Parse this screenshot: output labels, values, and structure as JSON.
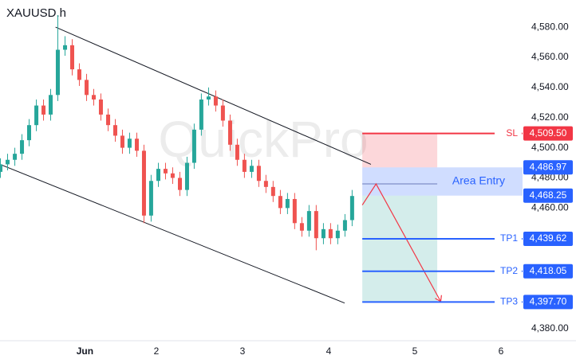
{
  "chart_data": {
    "type": "candlestick",
    "title": "XAUUSD.h",
    "watermark": "QuickPro",
    "up_color": "#26a69a",
    "down_color": "#ef5350",
    "xlim": [
      0.185,
      6.25
    ],
    "ylim": [
      4372,
      4598
    ],
    "xticks": [
      {
        "value": 1.17,
        "label": "Jun"
      },
      2,
      3,
      4,
      5,
      6
    ],
    "yticks": [
      {
        "value": 4380,
        "label": "4,380.00"
      },
      {
        "value": 4460,
        "label": "4,460.00"
      },
      {
        "value": 4480,
        "label": "4,480.00"
      },
      {
        "value": 4500,
        "label": "4,500.00"
      },
      {
        "value": 4520,
        "label": "4,520.00"
      },
      {
        "value": 4540,
        "label": "4,540.00"
      },
      {
        "value": 4560,
        "label": "4,560.00"
      },
      {
        "value": 4580,
        "label": "4,580.00"
      }
    ],
    "x": [
      0.19,
      0.273,
      0.357,
      0.44,
      0.523,
      0.607,
      0.69,
      0.773,
      0.856,
      0.94,
      1.023,
      1.106,
      1.19,
      1.273,
      1.356,
      1.44,
      1.523,
      1.606,
      1.689,
      1.773,
      1.856,
      1.939,
      2.023,
      2.106,
      2.189,
      2.273,
      2.356,
      2.439,
      2.522,
      2.606,
      2.689,
      2.772,
      2.856,
      2.939,
      3.022,
      3.106,
      3.189,
      3.272,
      3.355,
      3.439,
      3.522,
      3.605,
      3.689,
      3.772,
      3.855,
      3.939,
      4.022,
      4.105,
      4.189,
      4.272
    ],
    "open": [
      4484,
      4489,
      4492,
      4496,
      4505,
      4515,
      4528,
      4522,
      4535,
      4565,
      4568,
      4552,
      4545,
      4535,
      4532,
      4522,
      4515,
      4508,
      4500,
      4506,
      4498,
      4455,
      4478,
      4486,
      4483,
      4480,
      4472,
      4490,
      4512,
      4532,
      4534,
      4528,
      4518,
      4502,
      4492,
      4484,
      4488,
      4478,
      4474,
      4468,
      4460,
      4466,
      4450,
      4445,
      4458,
      4440,
      4446,
      4440,
      4445,
      4452
    ],
    "high": [
      4493,
      4496,
      4500,
      4509,
      4519,
      4532,
      4532,
      4539,
      4588,
      4574,
      4572,
      4556,
      4549,
      4539,
      4536,
      4526,
      4519,
      4512,
      4510,
      4510,
      4502,
      4482,
      4490,
      4490,
      4487,
      4484,
      4494,
      4516,
      4536,
      4540,
      4538,
      4532,
      4522,
      4506,
      4496,
      4492,
      4492,
      4482,
      4478,
      4472,
      4470,
      4470,
      4454,
      4462,
      4462,
      4450,
      4450,
      4449,
      4456,
      4472
    ],
    "low": [
      4480,
      4485,
      4488,
      4492,
      4501,
      4511,
      4518,
      4518,
      4531,
      4561,
      4548,
      4541,
      4531,
      4528,
      4518,
      4511,
      4504,
      4496,
      4496,
      4494,
      4450,
      4451,
      4474,
      4479,
      4476,
      4468,
      4468,
      4486,
      4508,
      4528,
      4524,
      4514,
      4498,
      4488,
      4480,
      4480,
      4474,
      4470,
      4464,
      4456,
      4456,
      4446,
      4441,
      4441,
      4432,
      4436,
      4436,
      4436,
      4441,
      4448
    ],
    "close": [
      4489,
      4492,
      4496,
      4505,
      4515,
      4528,
      4522,
      4535,
      4565,
      4568,
      4552,
      4545,
      4535,
      4532,
      4522,
      4515,
      4508,
      4500,
      4506,
      4498,
      4455,
      4478,
      4486,
      4483,
      4480,
      4472,
      4490,
      4512,
      4532,
      4534,
      4528,
      4518,
      4502,
      4492,
      4484,
      4488,
      4478,
      4474,
      4468,
      4460,
      4466,
      4450,
      4445,
      4458,
      4440,
      4446,
      4440,
      4445,
      4452,
      4468
    ],
    "trendlines": [
      {
        "x": [
          0.83,
          4.49
        ],
        "y": [
          4580,
          4489
        ]
      },
      {
        "x": [
          0.185,
          4.185
        ],
        "y": [
          4489,
          4397
        ]
      }
    ],
    "position_x": [
      4.39,
      5.26
    ],
    "levels": [
      {
        "name": "SL",
        "value": 4509.5,
        "value_label": "4,509.50",
        "color": "#f23645"
      },
      {
        "name": "TP1",
        "value": 4439.62,
        "value_label": "4,439.62",
        "color": "#2962ff"
      },
      {
        "name": "TP2",
        "value": 4418.05,
        "value_label": "4,418.05",
        "color": "#2962ff"
      },
      {
        "name": "TP3",
        "value": 4397.7,
        "value_label": "4,397.70",
        "color": "#2962ff"
      }
    ],
    "entry_zone": {
      "name": "Area Entry",
      "low": 4468.25,
      "high": 4486.97,
      "low_label": "4,468.25",
      "high_label": "4,486.97",
      "color": "#2962ff"
    },
    "arrow": {
      "x": [
        4.39,
        4.55,
        5.3
      ],
      "y": [
        4462,
        4476,
        4398
      ],
      "color": "#f23645"
    }
  }
}
